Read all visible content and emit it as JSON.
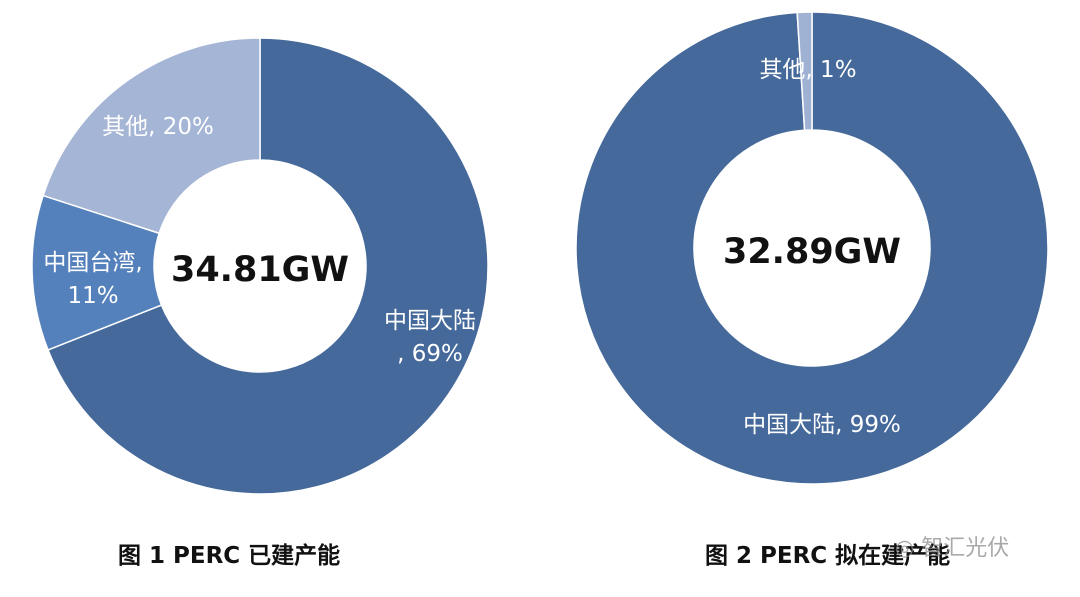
{
  "chart_data": [
    {
      "type": "pie",
      "title": "图 1 PERC 已建产能",
      "center_total": "34.81GW",
      "slices": [
        {
          "name": "中国大陆",
          "value": 69,
          "label_lines": [
            "中国大陆",
            ", 69%"
          ]
        },
        {
          "name": "中国台湾",
          "value": 11,
          "label_lines": [
            "中国台湾,",
            "11%"
          ]
        },
        {
          "name": "其他",
          "value": 20,
          "label_lines": [
            "其他, 20%"
          ]
        }
      ]
    },
    {
      "type": "pie",
      "title": "图 2 PERC 拟在建产能",
      "center_total": "32.89GW",
      "slices": [
        {
          "name": "中国大陆",
          "value": 99,
          "label_lines": [
            "中国大陆, 99%"
          ]
        },
        {
          "name": "其他",
          "value": 1,
          "label_lines": [
            "其他, 1%"
          ]
        }
      ]
    }
  ],
  "colors": {
    "mainland": "#44699a",
    "taiwan": "#5480bb",
    "other": "#a5b5d6",
    "other_chart2": "#9fb2d4"
  },
  "watermark": {
    "icon": "wechat-icon",
    "text": "智汇光伏"
  }
}
